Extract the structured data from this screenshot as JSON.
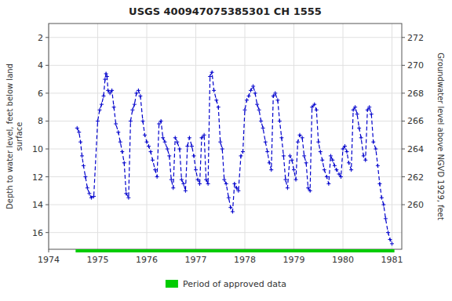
{
  "chart_data": {
    "type": "line",
    "title": "USGS 400947075385301 CH  1555",
    "y_label": "Depth to water level, feet below land\nsurface",
    "y2_label": "Groundwater level above NGVD 1929, feet",
    "xlim": [
      1974.0,
      1981.2
    ],
    "xticks": [
      1974,
      1975,
      1976,
      1977,
      1978,
      1979,
      1980,
      1981
    ],
    "ylim": [
      17.2,
      1.0
    ],
    "yticks": [
      2,
      4,
      6,
      8,
      10,
      12,
      14,
      16
    ],
    "y2lim": [
      256.8,
      273.0
    ],
    "y2ticks": [
      260,
      262,
      264,
      266,
      268,
      270,
      272
    ],
    "grid": true,
    "legend": "bottom",
    "x": [
      1974.58,
      1974.62,
      1974.65,
      1974.68,
      1974.71,
      1974.75,
      1974.79,
      1974.83,
      1974.87,
      1974.92,
      1975.0,
      1975.04,
      1975.08,
      1975.12,
      1975.15,
      1975.17,
      1975.19,
      1975.21,
      1975.25,
      1975.29,
      1975.33,
      1975.37,
      1975.42,
      1975.46,
      1975.5,
      1975.54,
      1975.58,
      1975.63,
      1975.67,
      1975.71,
      1975.75,
      1975.79,
      1975.83,
      1975.87,
      1975.92,
      1975.96,
      1976.0,
      1976.04,
      1976.08,
      1976.12,
      1976.17,
      1976.21,
      1976.25,
      1976.29,
      1976.33,
      1976.37,
      1976.42,
      1976.46,
      1976.5,
      1976.54,
      1976.58,
      1976.62,
      1976.67,
      1976.71,
      1976.75,
      1976.79,
      1976.83,
      1976.87,
      1976.92,
      1976.96,
      1977.0,
      1977.04,
      1977.08,
      1977.12,
      1977.17,
      1977.21,
      1977.25,
      1977.29,
      1977.33,
      1977.37,
      1977.42,
      1977.46,
      1977.5,
      1977.54,
      1977.58,
      1977.62,
      1977.67,
      1977.71,
      1977.75,
      1977.79,
      1977.83,
      1977.87,
      1977.92,
      1977.96,
      1978.0,
      1978.04,
      1978.08,
      1978.12,
      1978.17,
      1978.21,
      1978.25,
      1978.29,
      1978.33,
      1978.37,
      1978.42,
      1978.46,
      1978.5,
      1978.54,
      1978.58,
      1978.62,
      1978.67,
      1978.71,
      1978.75,
      1978.79,
      1978.83,
      1978.87,
      1978.92,
      1978.96,
      1979.0,
      1979.04,
      1979.08,
      1979.12,
      1979.17,
      1979.21,
      1979.25,
      1979.29,
      1979.33,
      1979.37,
      1979.42,
      1979.46,
      1979.5,
      1979.54,
      1979.58,
      1979.62,
      1979.67,
      1979.71,
      1979.75,
      1979.79,
      1979.83,
      1979.87,
      1979.92,
      1979.96,
      1980.0,
      1980.04,
      1980.08,
      1980.12,
      1980.17,
      1980.21,
      1980.25,
      1980.29,
      1980.33,
      1980.37,
      1980.42,
      1980.46,
      1980.5,
      1980.54,
      1980.58,
      1980.62,
      1980.67,
      1980.71,
      1980.75,
      1980.79,
      1980.83,
      1980.87,
      1980.92,
      1980.96,
      1981.0
    ],
    "series": [
      {
        "color": "#0000cc",
        "line_style": "dashed",
        "marker": "plus",
        "values": [
          8.5,
          8.8,
          9.5,
          10.5,
          11.2,
          12.0,
          12.8,
          13.2,
          13.5,
          13.4,
          8.0,
          7.2,
          6.8,
          6.2,
          5.0,
          4.6,
          4.8,
          5.8,
          6.0,
          5.8,
          7.0,
          8.2,
          8.8,
          9.5,
          10.2,
          11.0,
          13.2,
          13.5,
          8.0,
          7.2,
          6.8,
          6.0,
          5.8,
          6.2,
          8.0,
          9.0,
          9.5,
          9.8,
          10.2,
          10.8,
          11.5,
          12.0,
          8.2,
          8.0,
          9.2,
          9.5,
          10.0,
          10.5,
          12.2,
          12.8,
          9.2,
          9.5,
          10.0,
          12.2,
          12.5,
          13.0,
          9.8,
          9.2,
          9.8,
          10.5,
          11.5,
          12.2,
          12.5,
          9.2,
          9.0,
          12.2,
          12.5,
          4.8,
          4.5,
          5.8,
          6.5,
          7.0,
          9.5,
          10.0,
          12.2,
          12.5,
          13.5,
          14.2,
          14.5,
          12.5,
          12.8,
          13.0,
          10.5,
          10.2,
          7.2,
          6.5,
          6.2,
          5.8,
          5.5,
          6.0,
          6.8,
          7.2,
          8.0,
          8.5,
          9.5,
          10.2,
          11.0,
          11.5,
          6.2,
          6.0,
          6.5,
          8.0,
          9.2,
          10.5,
          12.2,
          12.8,
          10.5,
          10.8,
          11.5,
          12.2,
          9.5,
          9.0,
          9.2,
          10.5,
          11.0,
          12.8,
          13.0,
          7.0,
          6.8,
          7.2,
          9.5,
          10.2,
          10.8,
          11.5,
          12.0,
          12.5,
          10.5,
          10.8,
          11.2,
          11.5,
          11.8,
          12.0,
          10.0,
          9.8,
          10.2,
          11.0,
          11.5,
          7.2,
          7.0,
          7.5,
          8.5,
          9.2,
          10.5,
          10.8,
          7.2,
          7.0,
          7.5,
          9.5,
          10.0,
          11.2,
          12.5,
          13.5,
          14.0,
          15.0,
          16.0,
          16.5,
          16.8
        ]
      }
    ],
    "approved_period": {
      "name": "Period of approved data",
      "color": "#00cc00",
      "x": [
        1974.55,
        1981.05
      ]
    }
  }
}
